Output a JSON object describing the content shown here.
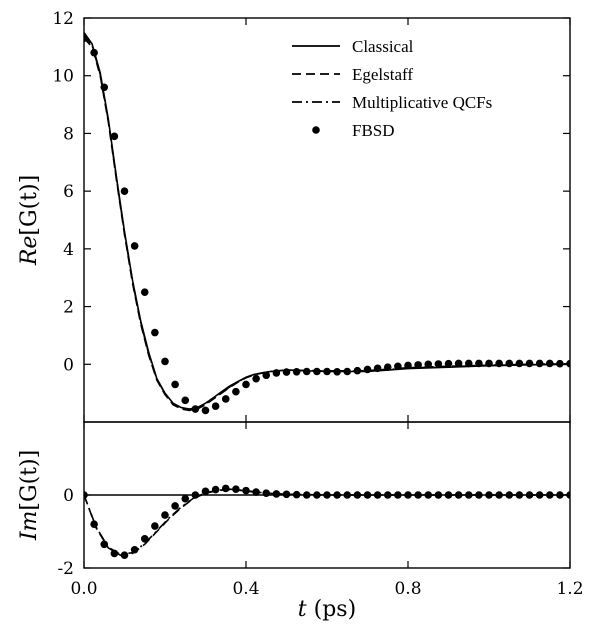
{
  "chart_data": [
    {
      "type": "line",
      "panel": "top",
      "ylabel_prefix": "Re",
      "ylabel_arg": "[G(t)]",
      "xlim": [
        0,
        1.2
      ],
      "ylim": [
        -2,
        12
      ],
      "yticks": [
        0,
        2,
        4,
        6,
        8,
        10,
        12
      ],
      "xticks": [
        0.0,
        0.4,
        0.8,
        1.2
      ],
      "legend_position": "top-right",
      "series": [
        {
          "name": "Classical",
          "style": "solid",
          "x": [
            0.0,
            0.02,
            0.04,
            0.06,
            0.08,
            0.1,
            0.12,
            0.14,
            0.16,
            0.18,
            0.2,
            0.22,
            0.24,
            0.26,
            0.28,
            0.3,
            0.32,
            0.34,
            0.36,
            0.38,
            0.4,
            0.42,
            0.44,
            0.46,
            0.5,
            0.6,
            0.7,
            0.8,
            0.9,
            1.0,
            1.1,
            1.2
          ],
          "y": [
            11.5,
            11.1,
            10.1,
            8.5,
            6.5,
            4.6,
            2.9,
            1.5,
            0.4,
            -0.5,
            -1.0,
            -1.35,
            -1.5,
            -1.55,
            -1.5,
            -1.35,
            -1.15,
            -0.95,
            -0.75,
            -0.6,
            -0.45,
            -0.35,
            -0.3,
            -0.25,
            -0.2,
            -0.25,
            -0.25,
            -0.15,
            -0.1,
            -0.05,
            -0.02,
            0.0
          ]
        },
        {
          "name": "Egelstaff",
          "style": "dashed",
          "x": [
            0.0,
            0.02,
            0.04,
            0.06,
            0.08,
            0.1,
            0.12,
            0.14,
            0.16,
            0.18,
            0.2,
            0.22,
            0.24,
            0.26,
            0.28,
            0.3,
            0.32,
            0.34,
            0.36,
            0.38,
            0.4,
            0.42,
            0.44,
            0.46,
            0.5,
            0.6,
            0.7,
            0.8,
            0.9,
            1.0,
            1.1,
            1.2
          ],
          "y": [
            11.3,
            11.0,
            10.0,
            8.4,
            6.4,
            4.5,
            2.8,
            1.4,
            0.3,
            -0.55,
            -1.05,
            -1.4,
            -1.55,
            -1.6,
            -1.55,
            -1.4,
            -1.2,
            -1.0,
            -0.8,
            -0.62,
            -0.47,
            -0.37,
            -0.3,
            -0.25,
            -0.2,
            -0.23,
            -0.22,
            -0.12,
            -0.07,
            -0.03,
            0.0,
            0.02
          ]
        },
        {
          "name": "Multiplicative QCFs",
          "style": "dashdot",
          "x": [
            0.0,
            0.02,
            0.04,
            0.06,
            0.08,
            0.1,
            0.12,
            0.14,
            0.16,
            0.18,
            0.2,
            0.22,
            0.24,
            0.26,
            0.28,
            0.3,
            0.32,
            0.34,
            0.36,
            0.38,
            0.4,
            0.42,
            0.44,
            0.46,
            0.5,
            0.6,
            0.7,
            0.8,
            0.9,
            1.0,
            1.1,
            1.2
          ],
          "y": [
            11.4,
            11.05,
            10.05,
            8.45,
            6.45,
            4.55,
            2.85,
            1.45,
            0.35,
            -0.52,
            -1.02,
            -1.38,
            -1.52,
            -1.58,
            -1.52,
            -1.38,
            -1.18,
            -0.98,
            -0.78,
            -0.61,
            -0.46,
            -0.36,
            -0.3,
            -0.25,
            -0.2,
            -0.24,
            -0.23,
            -0.13,
            -0.08,
            -0.04,
            -0.01,
            0.01
          ]
        },
        {
          "name": "FBSD",
          "style": "dots",
          "x": [
            0.0,
            0.025,
            0.05,
            0.075,
            0.1,
            0.125,
            0.15,
            0.175,
            0.2,
            0.225,
            0.25,
            0.275,
            0.3,
            0.325,
            0.35,
            0.375,
            0.4,
            0.425,
            0.45,
            0.475,
            0.5,
            0.525,
            0.55,
            0.575,
            0.6,
            0.625,
            0.65,
            0.675,
            0.7,
            0.725,
            0.75,
            0.775,
            0.8,
            0.825,
            0.85,
            0.875,
            0.9,
            0.925,
            0.95,
            0.975,
            1.0,
            1.025,
            1.05,
            1.075,
            1.1,
            1.125,
            1.15,
            1.175,
            1.2
          ],
          "y": [
            11.3,
            10.8,
            9.6,
            7.9,
            6.0,
            4.1,
            2.5,
            1.1,
            0.1,
            -0.7,
            -1.25,
            -1.55,
            -1.6,
            -1.45,
            -1.2,
            -0.95,
            -0.7,
            -0.5,
            -0.38,
            -0.3,
            -0.27,
            -0.26,
            -0.25,
            -0.25,
            -0.25,
            -0.26,
            -0.25,
            -0.22,
            -0.18,
            -0.14,
            -0.1,
            -0.07,
            -0.04,
            -0.02,
            0.0,
            0.01,
            0.02,
            0.03,
            0.03,
            0.03,
            0.03,
            0.03,
            0.03,
            0.03,
            0.03,
            0.03,
            0.03,
            0.02,
            0.02
          ]
        }
      ]
    },
    {
      "type": "line",
      "panel": "bottom",
      "ylabel_prefix": "Im",
      "ylabel_arg": "[G(t)]",
      "xlabel_var": "t",
      "xlabel_unit": "(ps)",
      "xlim": [
        0,
        1.2
      ],
      "ylim": [
        -2,
        2
      ],
      "yticks": [
        -2,
        0
      ],
      "xticks": [
        0.0,
        0.4,
        0.8,
        1.2
      ],
      "xtick_labels": [
        "0.0",
        "0.4",
        "0.8",
        "1.2"
      ],
      "series": [
        {
          "name": "Classical",
          "style": "solid",
          "x": [
            0.0,
            1.2
          ],
          "y": [
            0.0,
            0.0
          ]
        },
        {
          "name": "Egelstaff",
          "style": "dashed",
          "x": [
            0.0,
            0.03,
            0.06,
            0.09,
            0.12,
            0.15,
            0.18,
            0.21,
            0.24,
            0.27,
            0.3,
            0.33,
            0.36,
            0.39,
            0.42,
            0.45,
            0.5,
            0.6,
            0.8,
            1.0,
            1.2
          ],
          "y": [
            0.0,
            -0.9,
            -1.45,
            -1.65,
            -1.6,
            -1.35,
            -1.0,
            -0.65,
            -0.35,
            -0.1,
            0.05,
            0.12,
            0.15,
            0.12,
            0.08,
            0.05,
            0.02,
            0.0,
            0.0,
            0.0,
            0.0
          ]
        },
        {
          "name": "Multiplicative QCFs",
          "style": "dashdot",
          "x": [
            0.0,
            0.03,
            0.06,
            0.09,
            0.12,
            0.15,
            0.18,
            0.21,
            0.24,
            0.27,
            0.3,
            0.33,
            0.36,
            0.39,
            0.42,
            0.45,
            0.5,
            0.6,
            0.8,
            1.0,
            1.2
          ],
          "y": [
            0.0,
            -0.88,
            -1.43,
            -1.63,
            -1.58,
            -1.33,
            -0.98,
            -0.63,
            -0.33,
            -0.09,
            0.06,
            0.13,
            0.16,
            0.13,
            0.09,
            0.05,
            0.02,
            0.0,
            0.0,
            0.0,
            0.0
          ]
        },
        {
          "name": "FBSD",
          "style": "dots",
          "x": [
            0.0,
            0.025,
            0.05,
            0.075,
            0.1,
            0.125,
            0.15,
            0.175,
            0.2,
            0.225,
            0.25,
            0.275,
            0.3,
            0.325,
            0.35,
            0.375,
            0.4,
            0.425,
            0.45,
            0.475,
            0.5,
            0.525,
            0.55,
            0.575,
            0.6,
            0.625,
            0.65,
            0.675,
            0.7,
            0.725,
            0.75,
            0.775,
            0.8,
            0.825,
            0.85,
            0.875,
            0.9,
            0.925,
            0.95,
            0.975,
            1.0,
            1.025,
            1.05,
            1.075,
            1.1,
            1.125,
            1.15,
            1.175,
            1.2
          ],
          "y": [
            0.0,
            -0.8,
            -1.35,
            -1.6,
            -1.65,
            -1.5,
            -1.2,
            -0.85,
            -0.55,
            -0.3,
            -0.1,
            0.0,
            0.1,
            0.15,
            0.18,
            0.16,
            0.12,
            0.08,
            0.05,
            0.03,
            0.02,
            0.01,
            0.0,
            0.0,
            0.0,
            0.0,
            0.0,
            0.0,
            0.0,
            0.0,
            0.0,
            0.0,
            0.0,
            0.0,
            0.0,
            0.0,
            0.0,
            0.0,
            0.0,
            0.0,
            0.0,
            0.0,
            0.0,
            0.0,
            0.0,
            0.0,
            0.0,
            0.0,
            0.0
          ]
        }
      ]
    }
  ]
}
